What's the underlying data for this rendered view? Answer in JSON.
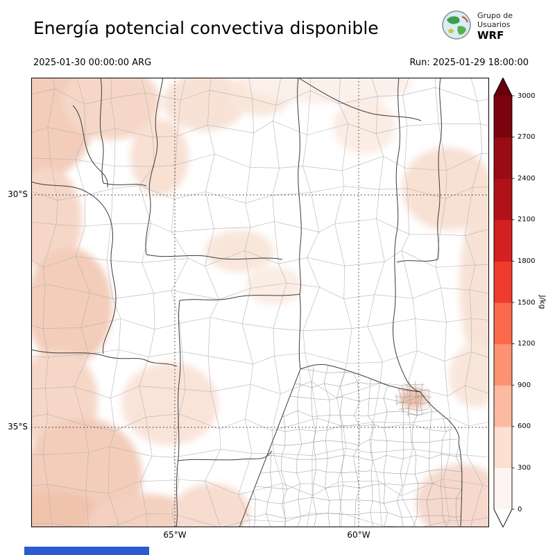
{
  "header": {
    "title": "Energía potencial convectiva disponible",
    "valid_time": "2025-01-30 00:00:00 ARG",
    "run_label": "Run: 2025-01-29 18:00:00",
    "logo": {
      "line1": "Grupo de",
      "line2": "Usuarios",
      "line3": "WRF"
    }
  },
  "map": {
    "lat_ticks": [
      "30°S",
      "35°S"
    ],
    "lon_ticks": [
      "65°W",
      "60°W"
    ]
  },
  "colorbar": {
    "unit": "J/kg",
    "ticks": [
      "0",
      "300",
      "600",
      "900",
      "1200",
      "1500",
      "1800",
      "2100",
      "2400",
      "2700",
      "3000"
    ],
    "colors_bottom_to_top": [
      "#fff5f0",
      "#fee0d2",
      "#fcbba1",
      "#fc9272",
      "#fb6a4a",
      "#ef3b2c",
      "#d42020",
      "#b11218",
      "#980c13",
      "#7a040e"
    ],
    "over_color": "#67000d",
    "under_color": "#ffffff"
  },
  "chart_data": {
    "type": "heatmap",
    "title": "Energía potencial convectiva disponible",
    "units": "J/kg",
    "levels": [
      0,
      300,
      600,
      900,
      1200,
      1500,
      1800,
      2100,
      2400,
      2700,
      3000
    ],
    "lat_gridlines": [
      "30°S",
      "35°S"
    ],
    "lon_gridlines": [
      "65°W",
      "60°W"
    ],
    "summary": "CAPE near 0 J/kg (white) over most of central Argentina; scattered pale-pink areas of roughly 0-600 J/kg along the western Andean margin, the northern edge of the domain, the eastern border and the southeastern Buenos Aires coast."
  }
}
